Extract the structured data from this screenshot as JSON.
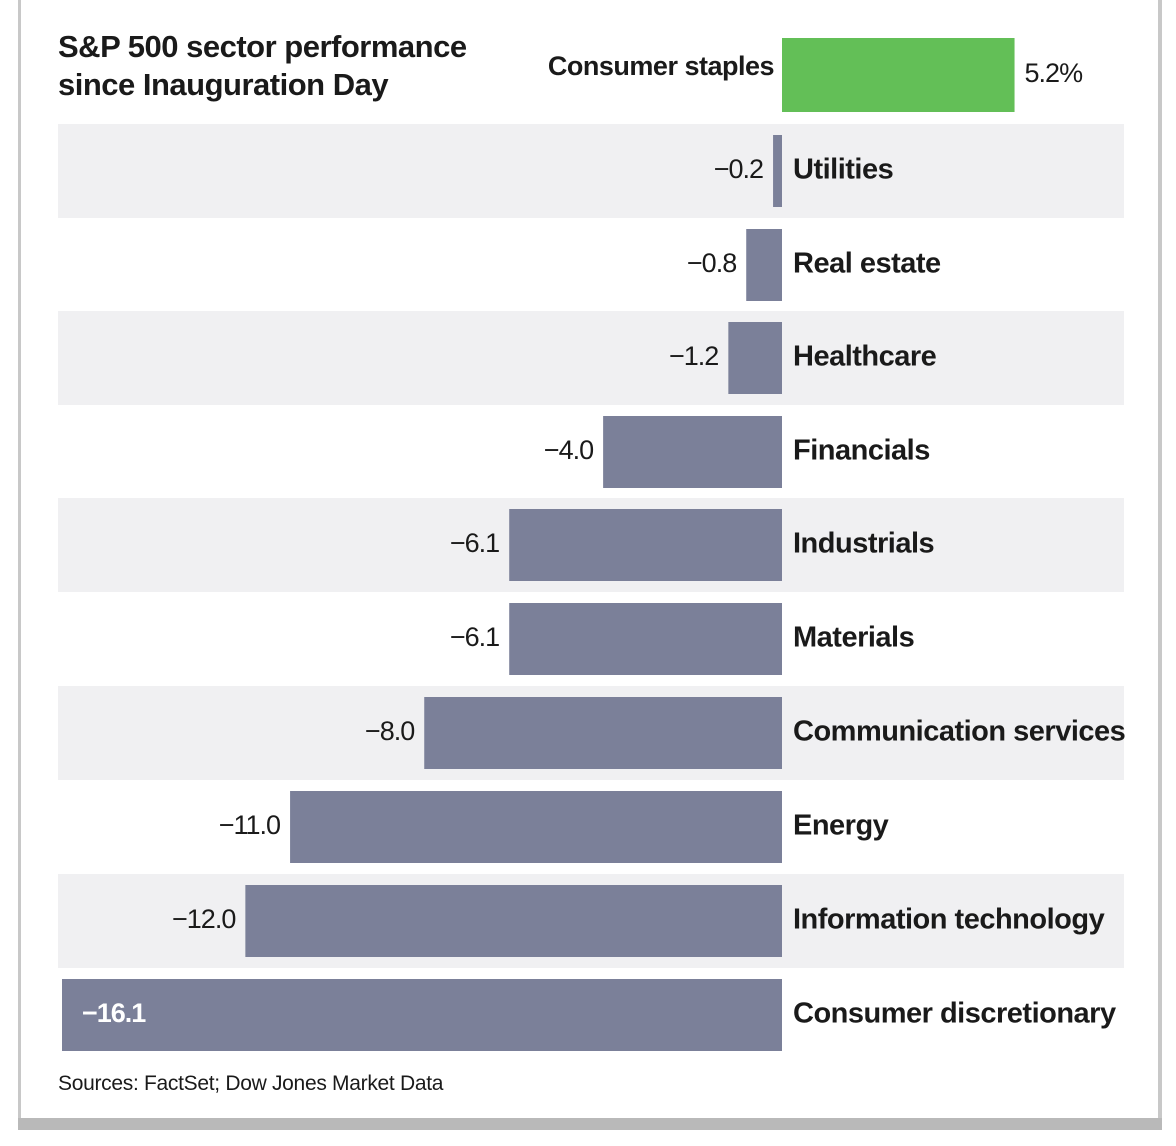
{
  "chart_data": {
    "type": "bar",
    "orientation": "horizontal",
    "title_line1": "S&P 500 sector performance",
    "title_line2": "since Inauguration Day",
    "categories": [
      "Consumer staples",
      "Utilities",
      "Real estate",
      "Healthcare",
      "Financials",
      "Industrials",
      "Materials",
      "Communication  services",
      "Energy",
      "Information technology",
      "Consumer discretionary"
    ],
    "values": [
      5.2,
      -0.2,
      -0.8,
      -1.2,
      -4.0,
      -6.1,
      -6.1,
      -8.0,
      -11.0,
      -12.0,
      -16.1
    ],
    "value_labels": [
      "5.2%",
      "−0.2",
      "−0.8",
      "−1.2",
      "−4.0",
      "−6.1",
      "−6.1",
      "−8.0",
      "−11.0",
      "−12.0",
      "−16.1"
    ],
    "xlim": [
      -16.1,
      5.2
    ],
    "source": "Sources: FactSet; Dow Jones Market Data",
    "colors": {
      "positive": "#63bf57",
      "negative": "#7b8099",
      "band": "#f0f0f2",
      "text": "#1a1a1a",
      "inside_label": "#ffffff"
    }
  }
}
